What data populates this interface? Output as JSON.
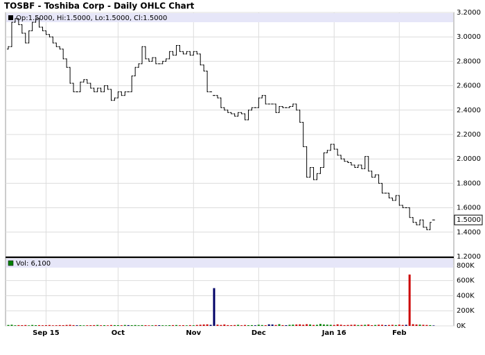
{
  "chart_data": {
    "type": "ohlc",
    "title": "TOSBF - Toshiba Corp - Daily OHLC Chart",
    "legend_text": "Op:1.5000, Hi:1.5000, Lo:1.5000, Cl:1.5000",
    "volume_legend_text": "Vol: 6,100",
    "categories": [
      null,
      null,
      null,
      null,
      null,
      null,
      null,
      null,
      null,
      null,
      null,
      "Sep 15",
      null,
      null,
      null,
      null,
      null,
      null,
      null,
      null,
      null,
      null,
      null,
      null,
      null,
      null,
      null,
      null,
      null,
      null,
      null,
      null,
      "Oct",
      null,
      null,
      null,
      null,
      null,
      null,
      null,
      null,
      null,
      null,
      null,
      null,
      null,
      null,
      null,
      null,
      null,
      null,
      null,
      null,
      null,
      "Nov",
      null,
      null,
      null,
      null,
      null,
      null,
      null,
      null,
      null,
      null,
      null,
      null,
      null,
      null,
      null,
      null,
      null,
      null,
      "Dec",
      null,
      null,
      null,
      null,
      null,
      null,
      null,
      null,
      null,
      null,
      null,
      null,
      null,
      null,
      null,
      null,
      null,
      null,
      null,
      null,
      null,
      "Jan 16",
      null,
      null,
      null,
      null,
      null,
      null,
      null,
      null,
      null,
      null,
      null,
      null,
      null,
      null,
      null,
      null,
      null,
      null,
      "Feb",
      null,
      null,
      null,
      null,
      null,
      null,
      null,
      null,
      null,
      null
    ],
    "open": [
      2.9,
      2.92,
      3.12,
      3.15,
      3.1,
      3.03,
      2.95,
      3.05,
      3.12,
      3.15,
      3.08,
      3.05,
      3.02,
      3.0,
      2.95,
      2.92,
      2.9,
      2.82,
      2.75,
      2.62,
      2.55,
      2.55,
      2.63,
      2.65,
      2.62,
      2.58,
      2.55,
      2.58,
      2.55,
      2.6,
      2.57,
      2.48,
      2.5,
      2.55,
      2.52,
      2.55,
      2.55,
      2.68,
      2.75,
      2.78,
      2.92,
      2.82,
      2.8,
      2.83,
      2.78,
      2.78,
      2.8,
      2.82,
      2.88,
      2.85,
      2.93,
      2.88,
      2.86,
      2.88,
      2.85,
      2.88,
      2.86,
      2.77,
      2.72,
      2.55,
      2.52,
      2.52,
      2.5,
      2.42,
      2.4,
      2.38,
      2.37,
      2.35,
      2.38,
      2.37,
      2.32,
      2.4,
      2.42,
      2.42,
      2.5,
      2.52,
      2.45,
      2.45,
      2.45,
      2.38,
      2.43,
      2.42,
      2.42,
      2.43,
      2.45,
      2.4,
      2.3,
      2.1,
      1.85,
      1.93,
      1.83,
      1.88,
      1.93,
      2.05,
      2.07,
      2.12,
      2.08,
      2.03,
      2.0,
      1.98,
      1.97,
      1.95,
      1.93,
      1.95,
      1.92,
      2.02,
      1.9,
      1.85,
      1.87,
      1.8,
      1.72,
      1.72,
      1.68,
      1.66,
      1.7,
      1.62,
      1.6,
      1.6,
      1.52,
      1.48,
      1.46,
      1.5,
      1.44,
      1.42,
      1.5
    ],
    "high": [
      2.92,
      3.12,
      3.15,
      3.15,
      3.1,
      3.03,
      3.05,
      3.12,
      3.15,
      3.15,
      3.08,
      3.05,
      3.02,
      3.0,
      2.95,
      2.92,
      2.9,
      2.82,
      2.75,
      2.62,
      2.55,
      2.63,
      2.65,
      2.65,
      2.62,
      2.58,
      2.58,
      2.58,
      2.6,
      2.6,
      2.57,
      2.5,
      2.55,
      2.55,
      2.55,
      2.55,
      2.68,
      2.75,
      2.78,
      2.92,
      2.92,
      2.82,
      2.83,
      2.83,
      2.78,
      2.8,
      2.82,
      2.88,
      2.88,
      2.93,
      2.93,
      2.88,
      2.88,
      2.88,
      2.88,
      2.88,
      2.86,
      2.77,
      2.72,
      2.55,
      2.52,
      2.52,
      2.5,
      2.42,
      2.4,
      2.38,
      2.37,
      2.38,
      2.38,
      2.37,
      2.4,
      2.42,
      2.42,
      2.5,
      2.52,
      2.52,
      2.45,
      2.45,
      2.45,
      2.43,
      2.43,
      2.42,
      2.43,
      2.45,
      2.45,
      2.4,
      2.3,
      2.1,
      1.93,
      1.93,
      1.88,
      1.93,
      2.05,
      2.07,
      2.12,
      2.12,
      2.08,
      2.03,
      2.0,
      1.98,
      1.97,
      1.95,
      1.95,
      1.95,
      2.02,
      2.02,
      1.9,
      1.87,
      1.87,
      1.8,
      1.72,
      1.72,
      1.68,
      1.7,
      1.7,
      1.62,
      1.6,
      1.6,
      1.52,
      1.48,
      1.5,
      1.5,
      1.44,
      1.48,
      1.5
    ],
    "low": [
      2.9,
      2.92,
      3.12,
      3.1,
      3.03,
      2.95,
      2.95,
      3.05,
      3.12,
      3.08,
      3.05,
      3.02,
      3.0,
      2.95,
      2.92,
      2.9,
      2.82,
      2.75,
      2.62,
      2.55,
      2.55,
      2.55,
      2.63,
      2.62,
      2.58,
      2.55,
      2.55,
      2.55,
      2.55,
      2.57,
      2.48,
      2.48,
      2.5,
      2.52,
      2.52,
      2.55,
      2.55,
      2.68,
      2.75,
      2.78,
      2.82,
      2.8,
      2.8,
      2.78,
      2.78,
      2.78,
      2.8,
      2.82,
      2.85,
      2.85,
      2.88,
      2.86,
      2.86,
      2.85,
      2.85,
      2.86,
      2.77,
      2.72,
      2.55,
      2.55,
      2.52,
      2.5,
      2.42,
      2.4,
      2.38,
      2.37,
      2.35,
      2.35,
      2.37,
      2.32,
      2.32,
      2.4,
      2.42,
      2.42,
      2.5,
      2.45,
      2.45,
      2.45,
      2.38,
      2.38,
      2.42,
      2.42,
      2.42,
      2.43,
      2.4,
      2.3,
      2.1,
      1.85,
      1.85,
      1.83,
      1.83,
      1.88,
      1.93,
      2.05,
      2.07,
      2.08,
      2.03,
      2.0,
      1.98,
      1.97,
      1.95,
      1.93,
      1.93,
      1.92,
      1.92,
      1.9,
      1.85,
      1.85,
      1.8,
      1.72,
      1.72,
      1.68,
      1.66,
      1.66,
      1.62,
      1.6,
      1.6,
      1.52,
      1.48,
      1.46,
      1.46,
      1.44,
      1.42,
      1.42,
      1.5
    ],
    "close": [
      2.92,
      3.12,
      3.15,
      3.1,
      3.03,
      2.95,
      3.05,
      3.12,
      3.15,
      3.08,
      3.05,
      3.02,
      3.0,
      2.95,
      2.92,
      2.9,
      2.82,
      2.75,
      2.62,
      2.55,
      2.55,
      2.63,
      2.65,
      2.62,
      2.58,
      2.55,
      2.58,
      2.55,
      2.6,
      2.57,
      2.48,
      2.5,
      2.55,
      2.52,
      2.55,
      2.55,
      2.68,
      2.75,
      2.78,
      2.92,
      2.82,
      2.8,
      2.83,
      2.78,
      2.78,
      2.8,
      2.82,
      2.88,
      2.85,
      2.93,
      2.88,
      2.86,
      2.88,
      2.85,
      2.88,
      2.86,
      2.77,
      2.72,
      2.55,
      2.55,
      2.52,
      2.5,
      2.42,
      2.4,
      2.38,
      2.37,
      2.35,
      2.38,
      2.37,
      2.32,
      2.4,
      2.42,
      2.42,
      2.5,
      2.52,
      2.45,
      2.45,
      2.45,
      2.38,
      2.43,
      2.42,
      2.42,
      2.43,
      2.45,
      2.4,
      2.3,
      2.1,
      1.85,
      1.93,
      1.83,
      1.88,
      1.93,
      2.05,
      2.07,
      2.12,
      2.08,
      2.03,
      2.0,
      1.98,
      1.97,
      1.95,
      1.93,
      1.95,
      1.92,
      2.02,
      1.9,
      1.85,
      1.87,
      1.8,
      1.72,
      1.72,
      1.68,
      1.66,
      1.7,
      1.62,
      1.6,
      1.6,
      1.52,
      1.48,
      1.46,
      1.5,
      1.44,
      1.42,
      1.48,
      1.5
    ],
    "volume": [
      12000,
      15000,
      8000,
      10000,
      9000,
      11000,
      7000,
      12000,
      9000,
      10000,
      8000,
      9000,
      11000,
      7000,
      8000,
      10000,
      9000,
      12000,
      14000,
      10000,
      8000,
      9000,
      7000,
      8000,
      9000,
      10000,
      12000,
      8000,
      9000,
      7000,
      11000,
      10000,
      9000,
      8000,
      12000,
      10000,
      9000,
      11000,
      8000,
      10000,
      9000,
      7000,
      8000,
      10000,
      9000,
      8000,
      7000,
      9000,
      10000,
      11000,
      8000,
      9000,
      7000,
      10000,
      8000,
      12000,
      15000,
      18000,
      20000,
      14000,
      500000,
      16000,
      12000,
      18000,
      10000,
      9000,
      11000,
      14000,
      8000,
      12000,
      9000,
      10000,
      8000,
      15000,
      11000,
      9000,
      20000,
      18000,
      12000,
      22000,
      10000,
      9000,
      14000,
      16000,
      18000,
      20000,
      15000,
      22000,
      18000,
      12000,
      14000,
      25000,
      18000,
      16000,
      14000,
      12000,
      20000,
      15000,
      10000,
      12000,
      14000,
      16000,
      11000,
      12000,
      14000,
      18000,
      9000,
      12000,
      15000,
      14000,
      10000,
      12000,
      14000,
      11000,
      16000,
      12000,
      14000,
      680000,
      22000,
      18000,
      16000,
      14000,
      12000,
      10000,
      6100
    ],
    "ylim": [
      1.2,
      3.2
    ],
    "yticks": [
      {
        "value": 1.2,
        "label": "1.2000"
      },
      {
        "value": 1.4,
        "label": "1.4000"
      },
      {
        "value": 1.6,
        "label": "1.6000"
      },
      {
        "value": 1.8,
        "label": "1.8000"
      },
      {
        "value": 2.0,
        "label": "2.0000"
      },
      {
        "value": 2.2,
        "label": "2.2000"
      },
      {
        "value": 2.4,
        "label": "2.4000"
      },
      {
        "value": 2.6,
        "label": "2.6000"
      },
      {
        "value": 2.8,
        "label": "2.8000"
      },
      {
        "value": 3.0,
        "label": "3.0000"
      },
      {
        "value": 3.2,
        "label": "3.2000"
      }
    ],
    "last_price": {
      "value": 1.5,
      "label": "1.5000"
    },
    "volume_ylim": [
      0,
      900000
    ],
    "volume_yticks": [
      {
        "value": 0,
        "label": "0K"
      },
      {
        "value": 200000,
        "label": "200K"
      },
      {
        "value": 400000,
        "label": "400K"
      },
      {
        "value": 600000,
        "label": "600K"
      },
      {
        "value": 800000,
        "label": "800K"
      }
    ],
    "grid": true,
    "bar_color": "#000000",
    "up_color": "#008000",
    "down_color": "#cc0000",
    "flat_color": "#000066"
  }
}
